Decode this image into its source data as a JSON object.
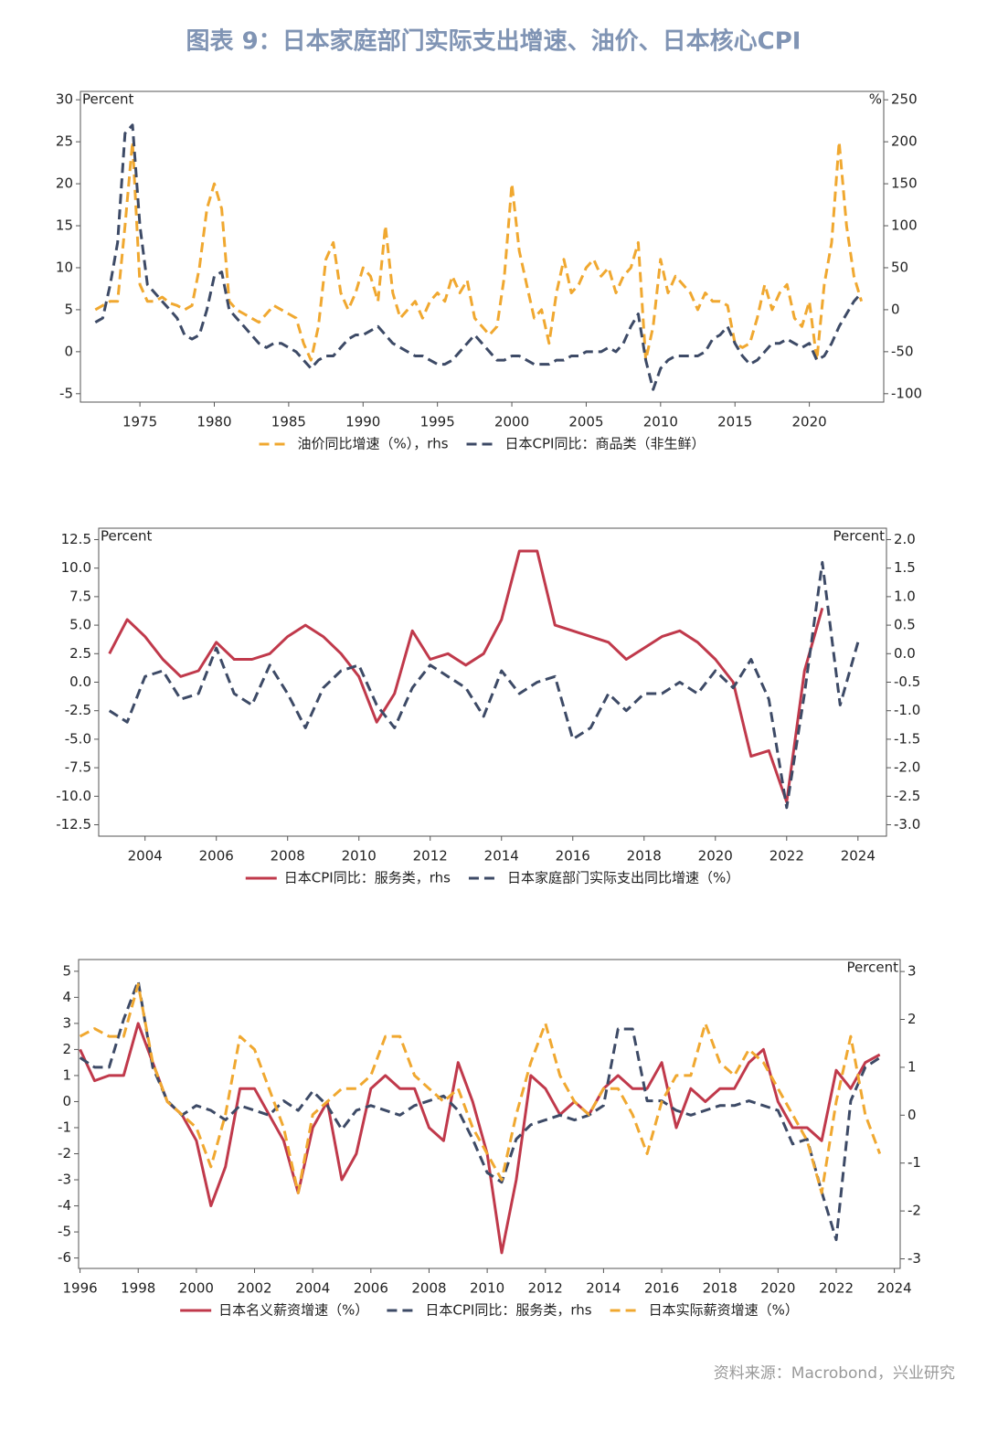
{
  "title": "图表 9：日本家庭部门实际支出增速、油价、日本核心CPI",
  "source": "资料来源：Macrobond，兴业研究",
  "chart_data": [
    {
      "type": "line",
      "y_label": "Percent",
      "y2_label": "%",
      "x": [
        1972,
        1972.5,
        1973,
        1973.5,
        1974,
        1974.5,
        1975,
        1975.5,
        1976,
        1976.5,
        1977,
        1977.5,
        1978,
        1978.5,
        1979,
        1979.5,
        1980,
        1980.5,
        1981,
        1981.5,
        1982,
        1982.5,
        1983,
        1983.5,
        1984,
        1984.5,
        1985,
        1985.5,
        1986,
        1986.5,
        1987,
        1987.5,
        1988,
        1988.5,
        1989,
        1989.5,
        1990,
        1990.5,
        1991,
        1991.5,
        1992,
        1992.5,
        1993,
        1993.5,
        1994,
        1994.5,
        1995,
        1995.5,
        1996,
        1996.5,
        1997,
        1997.5,
        1998,
        1998.5,
        1999,
        1999.5,
        2000,
        2000.5,
        2001,
        2001.5,
        2002,
        2002.5,
        2003,
        2003.5,
        2004,
        2004.5,
        2005,
        2005.5,
        2006,
        2006.5,
        2007,
        2007.5,
        2008,
        2008.5,
        2009,
        2009.5,
        2010,
        2010.5,
        2011,
        2011.5,
        2012,
        2012.5,
        2013,
        2013.5,
        2014,
        2014.5,
        2015,
        2015.5,
        2016,
        2016.5,
        2017,
        2017.5,
        2018,
        2018.5,
        2019,
        2019.5,
        2020,
        2020.5,
        2021,
        2021.5,
        2022,
        2022.5,
        2023,
        2023.5
      ],
      "xlim": [
        1971,
        2025
      ],
      "xticks": [
        1975,
        1980,
        1985,
        1990,
        1995,
        2000,
        2005,
        2010,
        2015,
        2020
      ],
      "ylim": [
        -6,
        31
      ],
      "yticks": [
        -5,
        0,
        5,
        10,
        15,
        20,
        25,
        30
      ],
      "y2lim": [
        -110,
        260
      ],
      "y2ticks": [
        -100,
        -50,
        0,
        50,
        100,
        150,
        200,
        250
      ],
      "series": [
        {
          "name": "油价同比增速（%），rhs",
          "color": "#f0a830",
          "style": "dashed",
          "axis": "y2",
          "values": [
            0,
            5,
            10,
            10,
            100,
            200,
            30,
            10,
            10,
            15,
            8,
            5,
            0,
            5,
            50,
            120,
            150,
            120,
            10,
            0,
            -5,
            -10,
            -15,
            -5,
            5,
            0,
            -5,
            -10,
            -40,
            -60,
            -20,
            60,
            80,
            20,
            0,
            20,
            50,
            40,
            10,
            100,
            20,
            -10,
            0,
            10,
            -10,
            10,
            20,
            10,
            40,
            20,
            35,
            -10,
            -20,
            -30,
            -20,
            40,
            150,
            70,
            30,
            -10,
            0,
            -40,
            20,
            60,
            20,
            30,
            50,
            60,
            40,
            50,
            20,
            40,
            50,
            80,
            -60,
            -20,
            60,
            20,
            40,
            30,
            20,
            0,
            20,
            10,
            10,
            5,
            -40,
            -45,
            -40,
            -10,
            30,
            0,
            20,
            30,
            -10,
            -20,
            10,
            -60,
            30,
            80,
            200,
            100,
            40,
            10
          ]
        },
        {
          "name": "日本CPI同比：商品类（非生鲜）",
          "color": "#3d4a66",
          "style": "dashed",
          "axis": "y",
          "values": [
            3.5,
            4,
            8,
            13,
            26,
            27,
            15,
            8,
            7,
            6,
            5,
            4,
            2,
            1.5,
            2,
            5,
            9,
            9.5,
            5,
            4,
            3,
            2,
            1,
            0.5,
            1,
            1,
            0.5,
            0,
            -1,
            -2,
            -1,
            -0.5,
            -0.5,
            0.5,
            1.5,
            2,
            2,
            2.5,
            3,
            2,
            1,
            0.5,
            0,
            -0.5,
            -0.5,
            -1,
            -1.5,
            -1.5,
            -1,
            0,
            1,
            2,
            1,
            0,
            -1,
            -1,
            -0.5,
            -0.5,
            -1,
            -1.5,
            -1.5,
            -1.5,
            -1,
            -1,
            -0.5,
            -0.5,
            0,
            0,
            0,
            0.5,
            0,
            1,
            3,
            4.5,
            -1,
            -4.5,
            -2,
            -1,
            -0.5,
            -0.5,
            -0.5,
            -0.5,
            0,
            1.5,
            2,
            3,
            1,
            -0.5,
            -1.5,
            -1,
            0,
            1,
            1,
            1.5,
            1,
            0.5,
            1,
            -1,
            -0.5,
            1,
            3,
            4.5,
            6,
            7
          ]
        }
      ]
    },
    {
      "type": "line",
      "y_label": "Percent",
      "y2_label": "Percent",
      "x": [
        2003,
        2003.5,
        2004,
        2004.5,
        2005,
        2005.5,
        2006,
        2006.5,
        2007,
        2007.5,
        2008,
        2008.5,
        2009,
        2009.5,
        2010,
        2010.5,
        2011,
        2011.5,
        2012,
        2012.5,
        2013,
        2013.5,
        2014,
        2014.5,
        2015,
        2015.5,
        2016,
        2016.5,
        2017,
        2017.5,
        2018,
        2018.5,
        2019,
        2019.5,
        2020,
        2020.5,
        2021,
        2021.5,
        2022,
        2022.5,
        2023,
        2023.5,
        2024
      ],
      "xlim": [
        2002.7,
        2024.8
      ],
      "xticks": [
        2004,
        2006,
        2008,
        2010,
        2012,
        2014,
        2016,
        2018,
        2020,
        2022,
        2024
      ],
      "ylim": [
        -13.5,
        13.5
      ],
      "yticks": [
        12.5,
        {
          "value": 10,
          "label": "10.0"
        },
        {
          "value": 7.5,
          "label": "7.5"
        },
        {
          "value": 5,
          "label": "5.0"
        },
        2.5,
        {
          "value": 0,
          "label": "0.0"
        },
        -2.5,
        {
          "value": -5,
          "label": "-5.0"
        },
        -7.5,
        {
          "value": -10,
          "label": "-10.0"
        },
        -12.5
      ],
      "y2lim": [
        -3.2,
        2.2
      ],
      "y2ticks": [
        {
          "value": 2,
          "label": "2.0"
        },
        1.5,
        {
          "value": 1,
          "label": "1.0"
        },
        0.5,
        {
          "value": 0,
          "label": "0.0"
        },
        -0.5,
        {
          "value": -1,
          "label": "-1.0"
        },
        -1.5,
        {
          "value": -2,
          "label": "-2.0"
        },
        -2.5,
        {
          "value": -3,
          "label": "-3.0"
        }
      ],
      "series": [
        {
          "name": "日本CPI同比：服务类，rhs",
          "color": "#c0394b",
          "style": "solid",
          "axis": "y2",
          "values": [
            0,
            0.6,
            0.3,
            -0.1,
            -0.4,
            -0.3,
            0.2,
            -0.1,
            -0.1,
            0,
            0.3,
            0.5,
            0.3,
            0,
            -0.4,
            -1.2,
            -0.7,
            0.4,
            -0.1,
            0,
            -0.2,
            0,
            0.6,
            1.8,
            1.8,
            0.5,
            0.4,
            0.3,
            0.2,
            -0.1,
            0.1,
            0.3,
            0.4,
            0.2,
            -0.1,
            -0.5,
            -1.8,
            -1.7,
            -2.6,
            -0.3,
            0.8,
            null,
            null
          ]
        },
        {
          "name": "日本家庭部门实际支出同比增速（%）",
          "color": "#3d4a66",
          "style": "dashed",
          "axis": "y",
          "values": [
            -2.5,
            -3.5,
            0.5,
            1,
            -1.5,
            -1,
            3,
            -1,
            -2,
            1.5,
            -1,
            -4,
            -0.5,
            1,
            1.5,
            -2,
            -4,
            -0.5,
            1.5,
            0.5,
            -0.5,
            -3,
            1,
            -1,
            0,
            0.5,
            -5,
            -4,
            -1,
            -2.5,
            -1,
            -1,
            0,
            -1,
            1,
            -0.5,
            2,
            -1.5,
            -11,
            -1,
            10.5,
            -2,
            3.5
          ]
        }
      ]
    },
    {
      "type": "line",
      "y2_label": "Percent",
      "x": [
        1996,
        1996.5,
        1997,
        1997.5,
        1998,
        1998.5,
        1999,
        1999.5,
        2000,
        2000.5,
        2001,
        2001.5,
        2002,
        2002.5,
        2003,
        2003.5,
        2004,
        2004.5,
        2005,
        2005.5,
        2006,
        2006.5,
        2007,
        2007.5,
        2008,
        2008.5,
        2009,
        2009.5,
        2010,
        2010.5,
        2011,
        2011.5,
        2012,
        2012.5,
        2013,
        2013.5,
        2014,
        2014.5,
        2015,
        2015.5,
        2016,
        2016.5,
        2017,
        2017.5,
        2018,
        2018.5,
        2019,
        2019.5,
        2020,
        2020.5,
        2021,
        2021.5,
        2022,
        2022.5,
        2023,
        2023.5
      ],
      "xlim": [
        1995.95,
        2024.2
      ],
      "xticks": [
        1996,
        1998,
        2000,
        2002,
        2004,
        2006,
        2008,
        2010,
        2012,
        2014,
        2016,
        2018,
        2020,
        2022,
        2024
      ],
      "ylim": [
        -6.4,
        5.45
      ],
      "yticks": [
        5,
        4,
        3,
        2,
        1,
        0,
        -1,
        -2,
        -3,
        -4,
        -5,
        -6
      ],
      "y2lim": [
        -3.2,
        3.25
      ],
      "y2ticks": [
        3,
        2,
        1,
        0,
        -1,
        -2,
        -3
      ],
      "series": [
        {
          "name": "日本名义薪资增速（%）",
          "color": "#c0394b",
          "style": "solid",
          "axis": "y",
          "values": [
            2,
            0.8,
            1,
            1,
            3,
            1.5,
            0,
            -0.5,
            -1.5,
            -4,
            -2.5,
            0.5,
            0.5,
            -0.5,
            -1.5,
            -3.5,
            -1,
            0,
            -3,
            -2,
            0.5,
            1,
            0.5,
            0.5,
            -1,
            -1.5,
            1.5,
            0,
            -2,
            -5.8,
            -3,
            1,
            0.5,
            -0.5,
            0,
            -0.5,
            0.5,
            1,
            0.5,
            0.5,
            1.5,
            -1,
            0.5,
            0,
            0.5,
            0.5,
            1.5,
            2,
            0,
            -1,
            -1,
            -1.5,
            1.2,
            0.5,
            1.5,
            1.8
          ]
        },
        {
          "name": "日本CPI同比：服务类，rhs",
          "color": "#3d4a66",
          "style": "dashed",
          "axis": "y2",
          "values": [
            1.2,
            1,
            1,
            2,
            2.8,
            1,
            0.3,
            0,
            0.2,
            0.1,
            -0.1,
            0.2,
            0.1,
            0,
            0.3,
            0.1,
            0.5,
            0.2,
            -0.3,
            0.1,
            0.2,
            0.1,
            0,
            0.2,
            0.3,
            0.4,
            0.1,
            -0.5,
            -1.2,
            -1.4,
            -0.5,
            -0.2,
            -0.1,
            0,
            -0.1,
            0,
            0.2,
            1.8,
            1.8,
            0.3,
            0.3,
            0.1,
            0,
            0.1,
            0.2,
            0.2,
            0.3,
            0.2,
            0.1,
            -0.6,
            -0.5,
            -1.6,
            -2.6,
            0.3,
            1,
            1.2
          ]
        },
        {
          "name": "日本实际薪资增速（%）",
          "color": "#f0a830",
          "style": "dashed",
          "axis": "y",
          "values": [
            2.5,
            2.8,
            2.5,
            2.5,
            4.5,
            1.5,
            0,
            -0.5,
            -1,
            -2.5,
            -0.5,
            2.5,
            2,
            0.5,
            -1,
            -3.5,
            -0.5,
            0,
            0.5,
            0.5,
            1,
            2.5,
            2.5,
            1,
            0.5,
            0,
            0.5,
            -1,
            -2,
            -3,
            -0.5,
            1.5,
            3,
            1,
            0,
            -0.5,
            0.5,
            0.5,
            -0.5,
            -2,
            0,
            1,
            1,
            3,
            1.5,
            1,
            2,
            1.5,
            0.5,
            -0.5,
            -1.5,
            -3.5,
            0,
            2.5,
            -0.5,
            -2
          ]
        }
      ]
    }
  ]
}
